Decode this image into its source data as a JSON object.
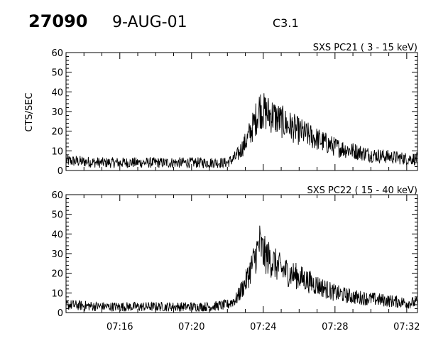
{
  "header": {
    "orbit": "27090",
    "date": "9-AUG-01",
    "class": "C3.1"
  },
  "chart_data": [
    {
      "type": "line",
      "title": "SXS PC21  (  3 - 15 keV)",
      "xlabel": "",
      "ylabel": "CTS/SEC",
      "ylim": [
        0,
        60
      ],
      "yticks": [
        0,
        10,
        20,
        30,
        40,
        50,
        60
      ],
      "xlim_minutes": [
        733,
        752.6
      ],
      "xtick_labels": [],
      "series": [
        {
          "color": "#000000",
          "x_minutes": [
            733,
            735,
            737,
            739,
            741,
            742,
            742.5,
            743,
            743.5,
            743.8,
            744,
            744.5,
            745,
            746,
            747,
            748,
            749,
            750,
            751,
            752,
            752.6
          ],
          "values": [
            5,
            4,
            4,
            4,
            4,
            4,
            7,
            14,
            24,
            32,
            30,
            28,
            25,
            20,
            16,
            12,
            10,
            8,
            7,
            6,
            6
          ]
        }
      ],
      "grid": false
    },
    {
      "type": "line",
      "title": "SXS PC22  ( 15 - 40 keV)",
      "xlabel": "",
      "ylabel": "",
      "ylim": [
        0,
        60
      ],
      "yticks": [
        0,
        10,
        20,
        30,
        40,
        50,
        60
      ],
      "xlim_minutes": [
        733,
        752.6
      ],
      "xtick_labels": [
        "07:16",
        "07:20",
        "07:24",
        "07:28",
        "07:32"
      ],
      "xtick_minutes": [
        736,
        740,
        744,
        748,
        752
      ],
      "series": [
        {
          "color": "#000000",
          "x_minutes": [
            733,
            735,
            737,
            739,
            741,
            742,
            742.5,
            743,
            743.5,
            743.8,
            744,
            744.5,
            745,
            746,
            747,
            748,
            749,
            750,
            751,
            752,
            752.6
          ],
          "values": [
            4,
            3,
            3,
            3,
            3,
            4,
            7,
            15,
            27,
            35,
            30,
            26,
            22,
            18,
            14,
            10,
            8,
            7,
            6,
            5,
            5
          ]
        }
      ],
      "grid": false
    }
  ]
}
